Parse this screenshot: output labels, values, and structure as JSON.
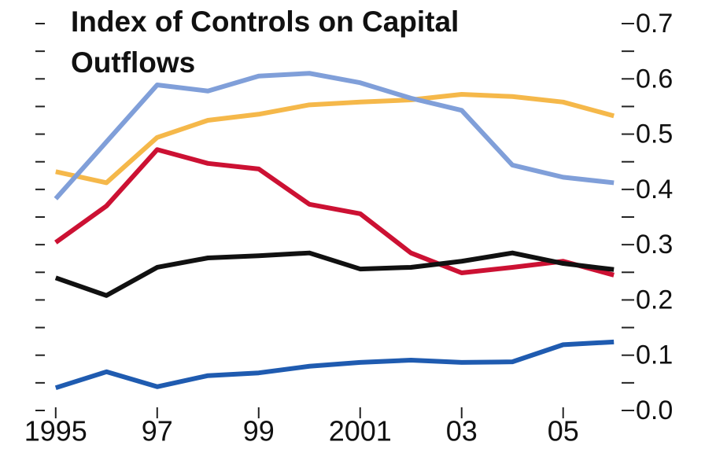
{
  "chart_data": {
    "type": "line",
    "title": "Index of Controls on Capital Outflows",
    "x": [
      1995,
      1996,
      1997,
      1998,
      1999,
      2000,
      2001,
      2002,
      2003,
      2004,
      2005,
      2006
    ],
    "series": [
      {
        "color": "#f5b84a",
        "values": [
          0.432,
          0.412,
          0.494,
          0.525,
          0.536,
          0.553,
          0.558,
          0.562,
          0.572,
          0.568,
          0.558,
          0.533
        ]
      },
      {
        "color": "#809fd9",
        "values": [
          0.383,
          0.486,
          0.589,
          0.578,
          0.605,
          0.61,
          0.593,
          0.565,
          0.543,
          0.444,
          0.422,
          0.412
        ]
      },
      {
        "color": "#cc1133",
        "values": [
          0.304,
          0.37,
          0.472,
          0.447,
          0.437,
          0.373,
          0.356,
          0.285,
          0.249,
          0.259,
          0.27,
          0.245
        ]
      },
      {
        "color": "#111111",
        "values": [
          0.24,
          0.208,
          0.259,
          0.276,
          0.28,
          0.285,
          0.256,
          0.259,
          0.27,
          0.285,
          0.266,
          0.255
        ]
      },
      {
        "color": "#1f5bb0",
        "values": [
          0.041,
          0.07,
          0.043,
          0.063,
          0.068,
          0.08,
          0.087,
          0.091,
          0.087,
          0.088,
          0.119,
          0.124
        ]
      }
    ],
    "xlim": [
      1994.6,
      2006.4
    ],
    "xticks": [
      1995,
      {
        "value": 1997,
        "label": "97"
      },
      {
        "value": 1999,
        "label": "99"
      },
      2001,
      {
        "value": 2003,
        "label": "03"
      },
      {
        "value": 2005,
        "label": "05"
      }
    ],
    "ylim": [
      0,
      0.7
    ],
    "yticks": [
      {
        "value": 0,
        "label": "0.0"
      },
      0.1,
      0.2,
      0.3,
      0.4,
      0.5,
      0.6,
      0.7
    ],
    "yminorticks": [
      0.05,
      0.15,
      0.25,
      0.35,
      0.45,
      0.55,
      0.65
    ],
    "grid": false
  }
}
